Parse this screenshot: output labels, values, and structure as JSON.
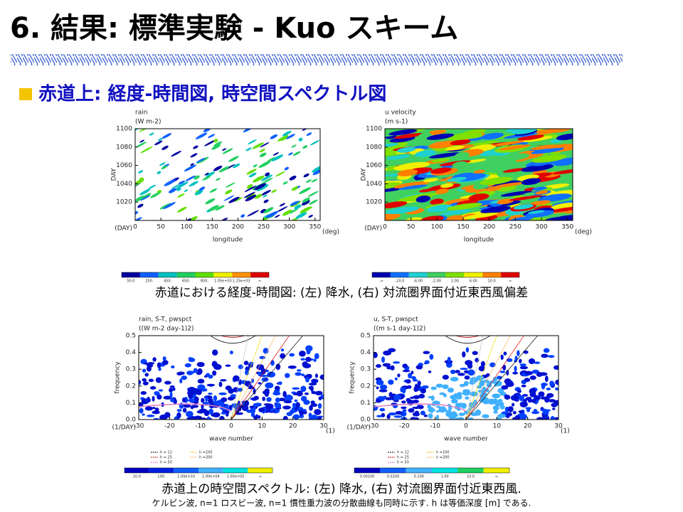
{
  "header": {
    "title": "6. 結果: 標準実験 - Kuo スキーム",
    "subtitle": "赤道上: 経度-時間図, 時空間スペクトル図"
  },
  "hovmoller": {
    "caption": "赤道における経度-時間図: (左) 降水, (右) 対流圏界面付近東西風偏差",
    "panels": [
      {
        "title": "rain",
        "units": "(W m-2)",
        "ylabel": "DAY",
        "yunit": "(DAY)",
        "xlabel": "longitude",
        "xunit": "(deg)",
        "xlim": [
          0,
          360
        ],
        "ylim": [
          1000,
          1100
        ],
        "xticks": [
          0,
          50,
          100,
          150,
          200,
          250,
          300,
          350
        ],
        "yticks": [
          1020,
          1040,
          1060,
          1080,
          1100
        ],
        "colorbar": [
          "50.0",
          "250.",
          "450.",
          "650.",
          "850.",
          "1.05e+03",
          "1.25e+03",
          "∞"
        ]
      },
      {
        "title": "u velocity",
        "units": "(m s-1)",
        "ylabel": "DAY",
        "yunit": "(DAY)",
        "xlabel": "longitude",
        "xunit": "(deg)",
        "xlim": [
          0,
          360
        ],
        "ylim": [
          1000,
          1100
        ],
        "xticks": [
          0,
          50,
          100,
          150,
          200,
          250,
          300,
          350
        ],
        "yticks": [
          1020,
          1040,
          1060,
          1080,
          1100
        ],
        "colorbar": [
          "-∞",
          "-10.0",
          "-6.00",
          "-2.00",
          "2.00",
          "6.00",
          "10.0",
          "∞"
        ]
      }
    ]
  },
  "spectra": {
    "caption": "赤道上の時空間スペクトル: (左) 降水, (右) 対流圏界面付近東西風.",
    "note": "ケルビン波, n=1 ロスビー波, n=1 慣性重力波の分散曲線も同時に示す. h は等価深度 [m] である.",
    "panels": [
      {
        "title": "rain, S-T, pwspct",
        "units": "((W m-2 day-1)2)",
        "ylabel": "frequency",
        "yunit": "(1/DAY)",
        "xlabel": "wave number",
        "xunit": "(1)",
        "xlim": [
          -30,
          30
        ],
        "ylim": [
          0,
          0.5
        ],
        "xticks": [
          -30,
          -20,
          -10,
          0,
          10,
          20,
          30
        ],
        "yticks": [
          {
            "value": 0,
            "label": "0.0"
          },
          0.1,
          0.2,
          0.3,
          0.4,
          0.5
        ],
        "legend": [
          "h = 12",
          "h = 25",
          "h = 50",
          "h =100",
          "h =200"
        ],
        "colorbar": [
          "10.0",
          "100.",
          "1.00e+03",
          "1.00e+04",
          "1.00e+05",
          "∞"
        ]
      },
      {
        "title": "u, S-T, pwspct",
        "units": "((m s-1 day-1)2)",
        "ylabel": "frequency",
        "yunit": "(1/DAY)",
        "xlabel": "wave number",
        "xunit": "(1)",
        "xlim": [
          -30,
          30
        ],
        "ylim": [
          0,
          0.5
        ],
        "xticks": [
          -30,
          -20,
          -10,
          0,
          10,
          20,
          30
        ],
        "yticks": [
          {
            "value": 0,
            "label": "0.0"
          },
          0.1,
          0.2,
          0.3,
          0.4,
          0.5
        ],
        "legend": [
          "h = 12",
          "h = 25",
          "h = 50",
          "h =100",
          "h =200"
        ],
        "colorbar": [
          "0.00100",
          "0.0100",
          "0.100",
          "1.00",
          "10.0",
          "∞"
        ]
      }
    ]
  }
}
